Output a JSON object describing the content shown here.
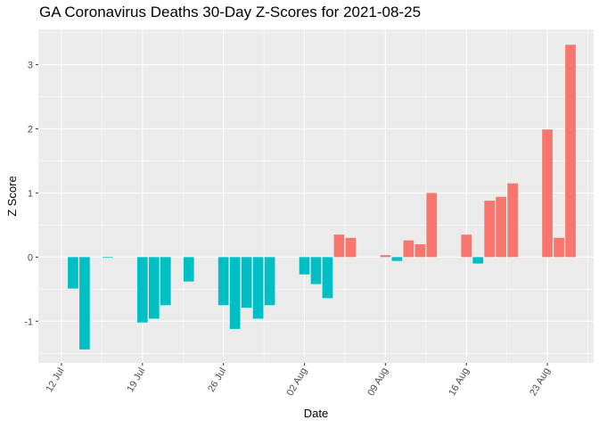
{
  "chart_data": {
    "type": "bar",
    "title": "GA Coronavirus Deaths 30-Day Z-Scores for 2021-08-25",
    "xlabel": "Date",
    "ylabel": "Z Score",
    "ylim": [
      -1.65,
      3.55
    ],
    "y_ticks": [
      -1,
      0,
      1,
      2,
      3
    ],
    "x_ticks": [
      {
        "date": "2021-07-12",
        "label": "12 Jul"
      },
      {
        "date": "2021-07-19",
        "label": "19 Jul"
      },
      {
        "date": "2021-07-26",
        "label": "26 Jul"
      },
      {
        "date": "2021-08-02",
        "label": "02 Aug"
      },
      {
        "date": "2021-08-09",
        "label": "09 Aug"
      },
      {
        "date": "2021-08-16",
        "label": "16 Aug"
      },
      {
        "date": "2021-08-23",
        "label": "23 Aug"
      }
    ],
    "xlim": [
      "2021-07-10",
      "2021-08-27"
    ],
    "grid": true,
    "legend": "none",
    "colors": {
      "positive": "#F8766D",
      "negative": "#00BFC4",
      "panel": "#EBEBEB",
      "grid": "#FFFFFF"
    },
    "x": [
      "2021-07-13",
      "2021-07-14",
      "2021-07-15",
      "2021-07-16",
      "2021-07-17",
      "2021-07-18",
      "2021-07-19",
      "2021-07-20",
      "2021-07-21",
      "2021-07-22",
      "2021-07-23",
      "2021-07-24",
      "2021-07-25",
      "2021-07-26",
      "2021-07-27",
      "2021-07-28",
      "2021-07-29",
      "2021-07-30",
      "2021-07-31",
      "2021-08-01",
      "2021-08-02",
      "2021-08-03",
      "2021-08-04",
      "2021-08-05",
      "2021-08-06",
      "2021-08-07",
      "2021-08-08",
      "2021-08-09",
      "2021-08-10",
      "2021-08-11",
      "2021-08-12",
      "2021-08-13",
      "2021-08-14",
      "2021-08-15",
      "2021-08-16",
      "2021-08-17",
      "2021-08-18",
      "2021-08-19",
      "2021-08-20",
      "2021-08-21",
      "2021-08-22",
      "2021-08-23",
      "2021-08-24",
      "2021-08-25"
    ],
    "values": [
      -0.49,
      -1.44,
      0,
      -0.01,
      0,
      0,
      -1.02,
      -0.96,
      -0.75,
      0,
      -0.38,
      0,
      0,
      -0.75,
      -1.12,
      -0.79,
      -0.96,
      -0.75,
      0,
      0,
      -0.27,
      -0.42,
      -0.64,
      0.35,
      0.3,
      0,
      0,
      0.03,
      -0.06,
      0.26,
      0.2,
      1,
      0,
      0,
      0.35,
      -0.1,
      0.88,
      0.94,
      1.15,
      0,
      0,
      1.99,
      0.3,
      3.31
    ]
  }
}
